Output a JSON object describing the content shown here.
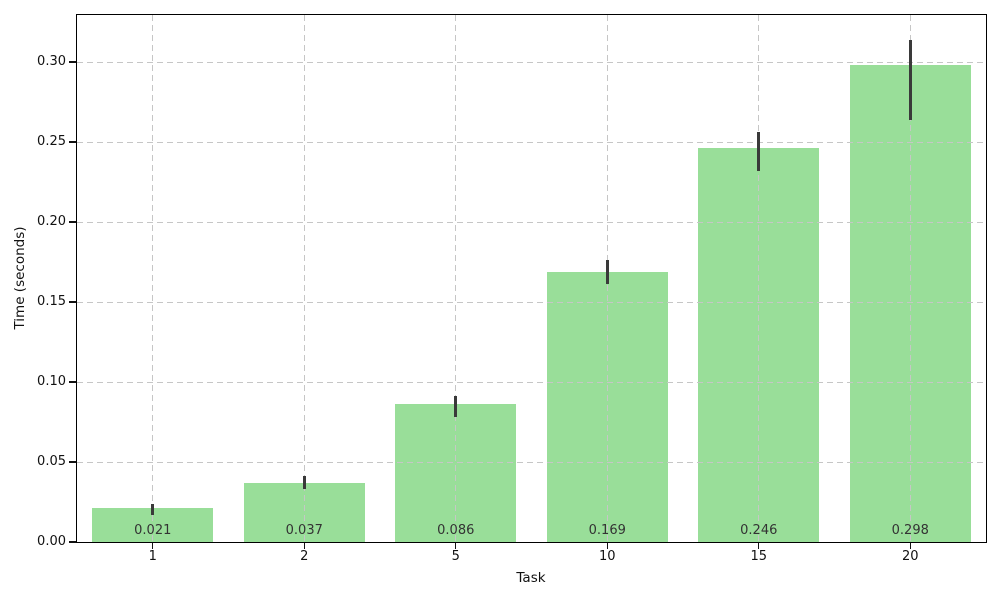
{
  "chart_data": {
    "type": "bar",
    "title": "",
    "xlabel": "Task",
    "ylabel": "Time (seconds)",
    "categories": [
      "1",
      "2",
      "5",
      "10",
      "15",
      "20"
    ],
    "values": [
      0.021,
      0.037,
      0.086,
      0.169,
      0.246,
      0.298
    ],
    "value_labels": [
      "0.021",
      "0.037",
      "0.086",
      "0.169",
      "0.246",
      "0.298"
    ],
    "error_low": [
      0.017,
      0.033,
      0.078,
      0.161,
      0.232,
      0.264
    ],
    "error_high": [
      0.024,
      0.041,
      0.091,
      0.176,
      0.256,
      0.314
    ],
    "ylim": [
      0,
      0.3294
    ],
    "yticks": [
      0,
      0.05,
      0.1,
      0.15,
      0.2,
      0.25,
      0.3
    ],
    "ytick_labels": [
      "0.00",
      "0.05",
      "0.10",
      "0.15",
      "0.20",
      "0.25",
      "0.30"
    ],
    "grid": true,
    "legend": "none",
    "colors": {
      "bar": "#99de99",
      "error_bar": "#3a3a3a",
      "grid": "#c6c6c6",
      "spine": "#000000",
      "tick_text": "#111111",
      "value_text": "#333333"
    }
  }
}
